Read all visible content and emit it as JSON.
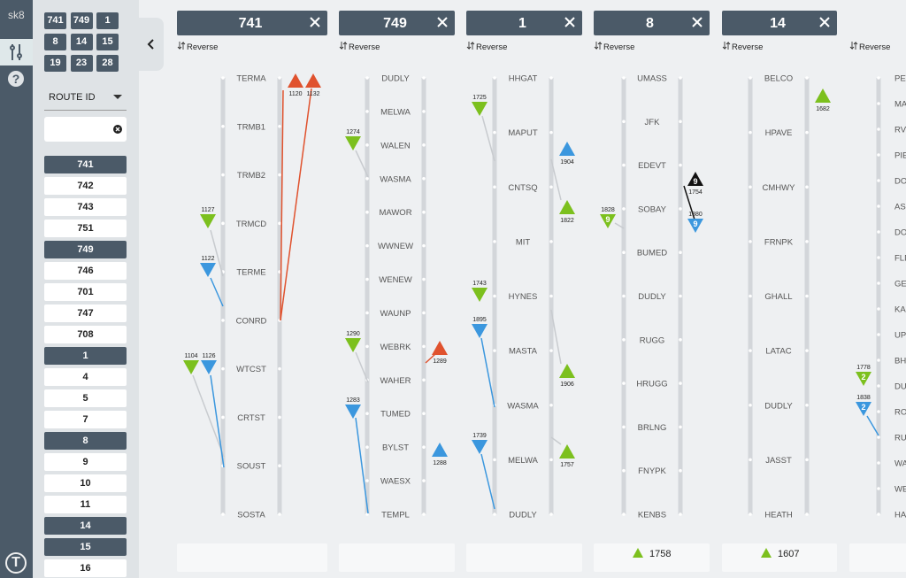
{
  "app": {
    "name": "sk8",
    "help_icon": "?",
    "logo": "T"
  },
  "sidebar": {
    "pinned": [
      "741",
      "749",
      "1",
      "8",
      "14",
      "15",
      "19",
      "23",
      "28"
    ],
    "sort_label": "ROUTE ID",
    "routes": [
      {
        "id": "741",
        "selected": true
      },
      {
        "id": "742",
        "selected": false
      },
      {
        "id": "743",
        "selected": false
      },
      {
        "id": "751",
        "selected": false
      },
      {
        "id": "749",
        "selected": true
      },
      {
        "id": "746",
        "selected": false
      },
      {
        "id": "701",
        "selected": false
      },
      {
        "id": "747",
        "selected": false
      },
      {
        "id": "708",
        "selected": false
      },
      {
        "id": "1",
        "selected": true
      },
      {
        "id": "4",
        "selected": false
      },
      {
        "id": "5",
        "selected": false
      },
      {
        "id": "7",
        "selected": false
      },
      {
        "id": "8",
        "selected": true
      },
      {
        "id": "9",
        "selected": false
      },
      {
        "id": "10",
        "selected": false
      },
      {
        "id": "11",
        "selected": false
      },
      {
        "id": "14",
        "selected": true
      },
      {
        "id": "15",
        "selected": true
      },
      {
        "id": "16",
        "selected": false
      }
    ]
  },
  "ladders": [
    {
      "route": "741",
      "reverse_label": "Reverse",
      "stops": [
        "TERMA",
        "TRMB1",
        "TRMB2",
        "TRMCD",
        "TERME",
        "CONRD",
        "WTCST",
        "CRTST",
        "SOUST",
        "SOSTA"
      ],
      "vehicles": [
        {
          "label": "1120",
          "direction": "up",
          "color": "#e0522e"
        },
        {
          "label": "1132",
          "direction": "up",
          "color": "#e0522e"
        },
        {
          "label": "1127",
          "direction": "down",
          "color": "#7cc01e"
        },
        {
          "label": "1122",
          "direction": "down",
          "color": "#3b97de"
        },
        {
          "label": "1104",
          "direction": "down",
          "color": "#7cc01e"
        },
        {
          "label": "1126",
          "direction": "down",
          "color": "#3b97de"
        }
      ]
    },
    {
      "route": "749",
      "reverse_label": "Reverse",
      "stops": [
        "DUDLY",
        "MELWA",
        "WALEN",
        "WASMA",
        "MAWOR",
        "WWNEW",
        "WENEW",
        "WAUNP",
        "WEBRK",
        "WAHER",
        "TUMED",
        "BYLST",
        "WAESX",
        "TEMPL"
      ],
      "vehicles": [
        {
          "label": "1274",
          "direction": "down",
          "color": "#7cc01e"
        },
        {
          "label": "1290",
          "direction": "down",
          "color": "#7cc01e"
        },
        {
          "label": "1283",
          "direction": "down",
          "color": "#3b97de"
        },
        {
          "label": "1289",
          "direction": "up",
          "color": "#e0522e"
        },
        {
          "label": "1288",
          "direction": "up",
          "color": "#3b97de"
        }
      ]
    },
    {
      "route": "1",
      "reverse_label": "Reverse",
      "stops": [
        "HHGAT",
        "MAPUT",
        "CNTSQ",
        "MIT",
        "HYNES",
        "MASTA",
        "WASMA",
        "MELWA",
        "DUDLY"
      ],
      "vehicles": [
        {
          "label": "1725",
          "direction": "down",
          "color": "#7cc01e"
        },
        {
          "label": "1743",
          "direction": "down",
          "color": "#7cc01e"
        },
        {
          "label": "1895",
          "direction": "down",
          "color": "#3b97de"
        },
        {
          "label": "1739",
          "direction": "down",
          "color": "#3b97de"
        },
        {
          "label": "1904",
          "direction": "up",
          "color": "#3b97de"
        },
        {
          "label": "1822",
          "direction": "up",
          "color": "#7cc01e"
        },
        {
          "label": "1906",
          "direction": "up",
          "color": "#7cc01e"
        },
        {
          "label": "1757",
          "direction": "up",
          "color": "#7cc01e"
        }
      ]
    },
    {
      "route": "8",
      "reverse_label": "Reverse",
      "stops": [
        "UMASS",
        "JFK",
        "EDEVT",
        "SOBAY",
        "BUMED",
        "DUDLY",
        "RUGG",
        "HRUGG",
        "BRLNG",
        "FNYPK",
        "KENBS"
      ],
      "vehicles": [
        {
          "label": "1828",
          "direction": "down",
          "color": "#7cc01e",
          "run": "9"
        },
        {
          "label": "1754",
          "direction": "up",
          "color": "#111111",
          "run": "9"
        },
        {
          "label": "1880",
          "direction": "down",
          "color": "#3b97de",
          "run": "9"
        }
      ],
      "footer": {
        "label": "1758"
      }
    },
    {
      "route": "14",
      "reverse_label": "Reverse",
      "stops": [
        "BELCO",
        "HPAVE",
        "CMHWY",
        "FRNPK",
        "GHALL",
        "LATAC",
        "DUDLY",
        "JASST",
        "HEATH"
      ],
      "vehicles": [
        {
          "label": "1682",
          "direction": "up",
          "color": "#7cc01e"
        }
      ],
      "footer": {
        "label": "1607"
      }
    },
    {
      "reverse_label": "Reverse",
      "stops": [
        "PET",
        "MA",
        "RVC",
        "PIE",
        "DOT",
        "ASH",
        "DOT",
        "FLD",
        "GEI",
        "KA",
        "UPH",
        "BH",
        "DU",
        "RO",
        "RU",
        "WA",
        "WE",
        "HA"
      ],
      "vehicles": [
        {
          "label": "1778",
          "direction": "down",
          "color": "#7cc01e",
          "run": "2"
        },
        {
          "label": "1838",
          "direction": "down",
          "color": "#3b97de",
          "run": "2"
        }
      ]
    }
  ]
}
